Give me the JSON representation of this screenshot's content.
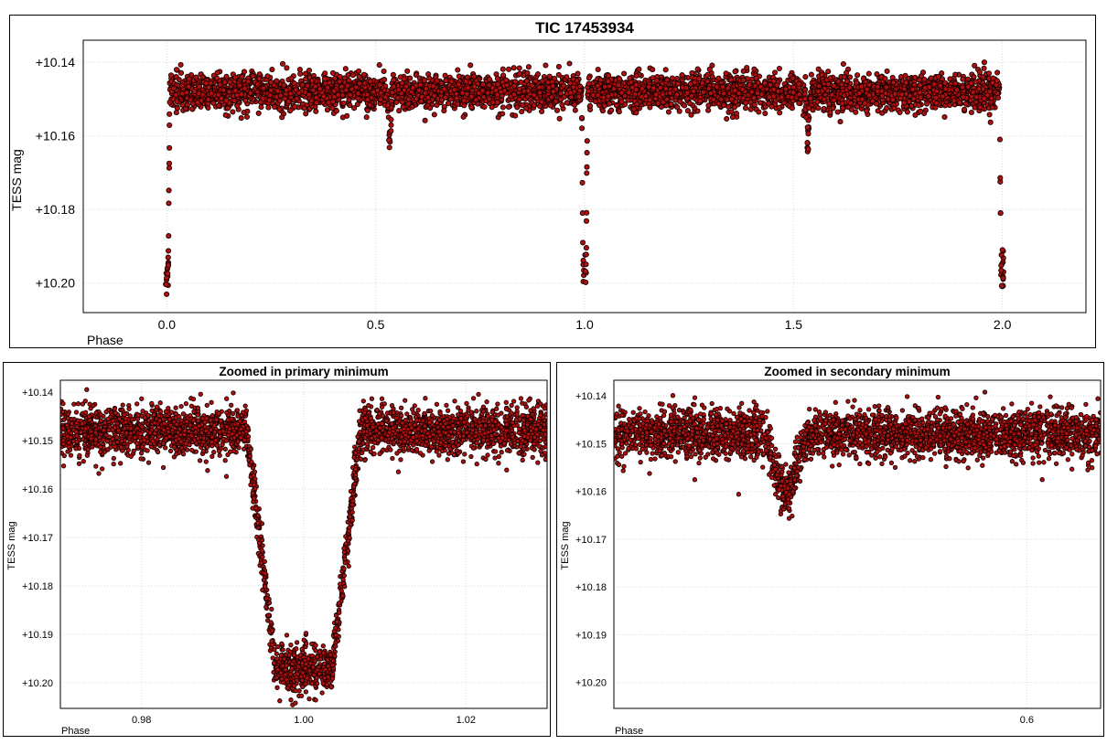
{
  "chart_data": [
    {
      "type": "scatter",
      "title": "TIC 17453934",
      "xlabel": "Phase",
      "ylabel": "TESS mag",
      "xlim": [
        -0.2,
        2.2
      ],
      "ylim": [
        10.208,
        10.134
      ],
      "y_inverted": true,
      "x_ticks": [
        "0.0",
        "0.5",
        "1.0",
        "1.5",
        "2.0"
      ],
      "x_tick_values": [
        0.0,
        0.5,
        1.0,
        1.5,
        2.0
      ],
      "y_ticks": [
        "+10.14",
        "+10.16",
        "+10.18",
        "+10.20"
      ],
      "y_tick_values": [
        10.14,
        10.16,
        10.18,
        10.2
      ],
      "grid": true,
      "marker_color": "#b01010",
      "marker_edge": "#1a0000",
      "light_curve": {
        "baseline_mag": 10.148,
        "scatter_mag": 0.005,
        "primary_minimum": {
          "phases": [
            0.0,
            1.0,
            2.0
          ],
          "depth_mag": 0.049,
          "half_width": 0.007,
          "flat_half_width": 0.0035
        },
        "secondary_minimum": {
          "phases": [
            0.5337,
            1.5337
          ],
          "depth_mag": 0.012,
          "half_width": 0.0057,
          "flat_half_width": 0.001
        }
      }
    },
    {
      "type": "scatter",
      "title": "Zoomed in primary minimum",
      "xlabel": "Phase",
      "ylabel": "TESS mag",
      "xlim": [
        0.97,
        1.03
      ],
      "ylim": [
        10.2053,
        10.1375
      ],
      "y_inverted": true,
      "x_ticks": [
        "0.98",
        "1.00",
        "1.02"
      ],
      "x_tick_values": [
        0.98,
        1.0,
        1.02
      ],
      "y_ticks": [
        "+10.14",
        "+10.15",
        "+10.16",
        "+10.17",
        "+10.18",
        "+10.19",
        "+10.20"
      ],
      "y_tick_values": [
        10.14,
        10.15,
        10.16,
        10.17,
        10.18,
        10.19,
        10.2
      ],
      "grid": true,
      "marker_color": "#b01010",
      "marker_edge": "#1a0000"
    },
    {
      "type": "scatter",
      "title": "Zoomed in secondary minimum",
      "xlabel": "Phase",
      "ylabel": "TESS mag",
      "xlim": [
        0.4863,
        0.6203
      ],
      "ylim": [
        10.2054,
        10.1367
      ],
      "y_inverted": true,
      "x_ticks": [
        "0.6"
      ],
      "x_tick_values": [
        0.6
      ],
      "y_ticks": [
        "+10.14",
        "+10.15",
        "+10.16",
        "+10.17",
        "+10.18",
        "+10.19",
        "+10.20"
      ],
      "y_tick_values": [
        10.14,
        10.15,
        10.16,
        10.17,
        10.18,
        10.19,
        10.2
      ],
      "grid": true,
      "marker_color": "#b01010",
      "marker_edge": "#1a0000"
    }
  ]
}
